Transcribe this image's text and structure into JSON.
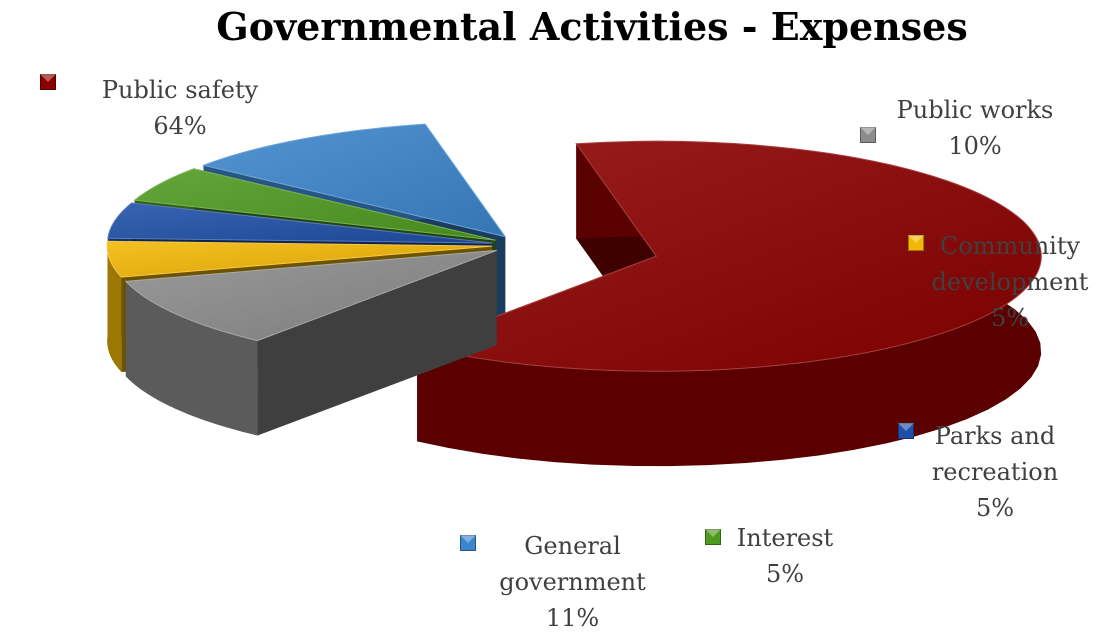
{
  "chart_data": {
    "type": "pie",
    "title": "Governmental Activities - Expenses",
    "slices": [
      {
        "label": "Public safety",
        "value": 64,
        "value_label": "64%",
        "color": "#8B0000",
        "exploded": true
      },
      {
        "label": "Public works",
        "value": 10,
        "value_label": "10%",
        "color": "#8C8C8C",
        "exploded": true
      },
      {
        "label": "Community development",
        "value": 5,
        "value_label": "5%",
        "color": "#F2B705",
        "exploded": true
      },
      {
        "label": "Parks and recreation",
        "value": 5,
        "value_label": "5%",
        "color": "#1F4FA8",
        "exploded": true
      },
      {
        "label": "Interest",
        "value": 5,
        "value_label": "5%",
        "color": "#4E9A1F",
        "exploded": true
      },
      {
        "label": "General government",
        "value": 11,
        "value_label": "11%",
        "color": "#3C85CC",
        "exploded": true
      }
    ],
    "style": "3d-exploded",
    "legend": "labels-next-to-slices"
  }
}
